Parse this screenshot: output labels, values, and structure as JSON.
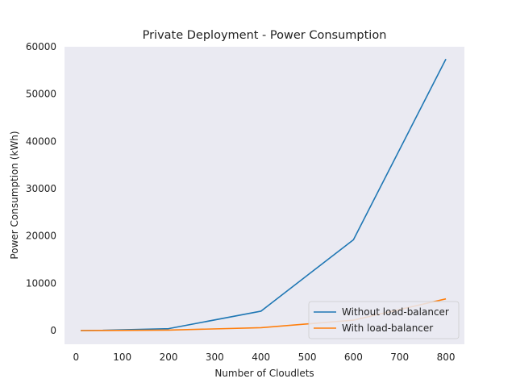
{
  "chart_data": {
    "type": "line",
    "title": "Private Deployment - Power Consumption",
    "xlabel": "Number of Cloudlets",
    "ylabel": "Power Consumption (kWh)",
    "xlim": [
      -25,
      840
    ],
    "ylim": [
      -2900,
      60000
    ],
    "xticks": [
      0,
      100,
      200,
      300,
      400,
      500,
      600,
      700,
      800
    ],
    "yticks": [
      0,
      10000,
      20000,
      30000,
      40000,
      50000,
      60000
    ],
    "grid": false,
    "legend_position": "lower-right",
    "x": [
      10,
      50,
      200,
      400,
      600,
      800
    ],
    "series": [
      {
        "name": "Without load-balancer",
        "color": "#1f77b4",
        "values": [
          0,
          40,
          400,
          4100,
          19200,
          57400
        ]
      },
      {
        "name": "With load-balancer",
        "color": "#ff7f0e",
        "values": [
          0,
          10,
          100,
          600,
          2200,
          6700
        ]
      }
    ],
    "plot_background": "#eaeaf2"
  }
}
